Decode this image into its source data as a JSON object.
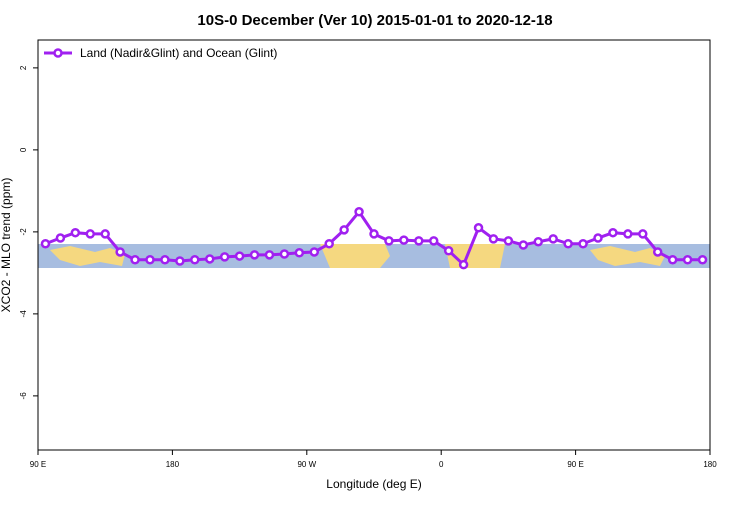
{
  "chart_data": {
    "type": "line",
    "title": "10S-0 December (Ver 10)   2015-01-01 to 2020-12-18",
    "x_label": "Longitude (deg E)",
    "y_label": "XCO2 - MLO trend (ppm)",
    "xlim": [
      90,
      540
    ],
    "ylim": [
      -7.32,
      2.68
    ],
    "xticks": [
      {
        "value": 90,
        "label": "90 E"
      },
      {
        "value": 180,
        "label": "180"
      },
      {
        "value": 270,
        "label": "90 W"
      },
      {
        "value": 360,
        "label": "0"
      },
      {
        "value": 450,
        "label": "90 E"
      },
      {
        "value": 540,
        "label": "180"
      }
    ],
    "yticks": [
      2,
      0,
      -2,
      -4,
      -6
    ],
    "legend_position": "top-left",
    "x": [
      95,
      105,
      115,
      125,
      135,
      145,
      155,
      165,
      175,
      185,
      195,
      205,
      215,
      225,
      235,
      245,
      255,
      265,
      275,
      285,
      295,
      305,
      315,
      325,
      335,
      345,
      355,
      365,
      375,
      385,
      395,
      405,
      415,
      425,
      435,
      445,
      455,
      465,
      475,
      485,
      495,
      505,
      515,
      525,
      535
    ],
    "series": [
      {
        "name": "Land (Nadir&Glint) and Ocean (Glint)",
        "color": "#a020f0",
        "values": [
          -2.29,
          -2.15,
          -2.02,
          -2.05,
          -2.05,
          -2.49,
          -2.68,
          -2.68,
          -2.68,
          -2.71,
          -2.68,
          -2.66,
          -2.61,
          -2.59,
          -2.56,
          -2.56,
          -2.54,
          -2.51,
          -2.49,
          -2.29,
          -1.95,
          -1.51,
          -2.05,
          -2.22,
          -2.2,
          -2.22,
          -2.22,
          -2.46,
          -2.8,
          -1.9,
          -2.17,
          -2.22,
          -2.32,
          -2.24,
          -2.17,
          -2.29,
          -2.29,
          -2.15,
          -2.02,
          -2.05,
          -2.05,
          -2.49,
          -2.68,
          -2.68,
          -2.68
        ]
      }
    ]
  }
}
